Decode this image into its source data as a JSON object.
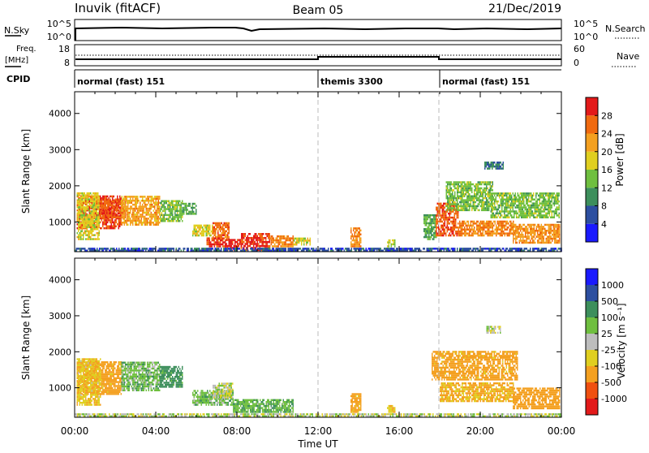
{
  "header": {
    "station": "Inuvik (fitACF)",
    "beam": "Beam 05",
    "date": "21/Dec/2019"
  },
  "top_panels": {
    "nsky_label": "N.Sky",
    "nsky_ticks": [
      "10^5",
      "10^0"
    ],
    "nsearch_label": "N.Search",
    "nsearch_ticks": [
      "10^5",
      "10^0"
    ],
    "freq_label": "Freq.",
    "freq_unit": "[MHz]",
    "freq_ticks": [
      "18",
      "8"
    ],
    "nave_label": "Nave",
    "nave_ticks": [
      "60",
      "0"
    ],
    "cpid_label": "CPID",
    "cpid_segments": [
      {
        "label": "normal (fast) 151",
        "start_hour": 0,
        "end_hour": 12
      },
      {
        "label": "themis 3300",
        "start_hour": 12,
        "end_hour": 18
      },
      {
        "label": "normal (fast) 151",
        "start_hour": 18,
        "end_hour": 24
      }
    ]
  },
  "colors": {
    "power": [
      "#1a1aff",
      "#2d4fa0",
      "#3d8f5c",
      "#6fbf3f",
      "#e0cf20",
      "#f4a020",
      "#f06a10",
      "#e31a1a"
    ],
    "velocity": [
      "#e31a1a",
      "#f05010",
      "#f4a020",
      "#e0cf20",
      "#bdbdbd",
      "#6fbf3f",
      "#3d8f5c",
      "#2d4fa0",
      "#1a1aff"
    ]
  },
  "chart_data": [
    {
      "type": "heatmap",
      "title": "",
      "xlabel": "Time UT",
      "ylabel": "Slant Range [km]",
      "xlim": [
        0,
        24
      ],
      "ylim": [
        180,
        4600
      ],
      "x_ticks": [
        "00:00",
        "04:00",
        "08:00",
        "12:00",
        "16:00",
        "20:00",
        "00:00"
      ],
      "y_ticks": [
        1000,
        2000,
        3000,
        4000
      ],
      "colorbar_label": "Power [dB]",
      "colorbar_ticks": [
        "4",
        "8",
        "12",
        "16",
        "20",
        "24",
        "28"
      ],
      "colorbar_range": [
        0,
        32
      ],
      "regions": [
        {
          "t0": 0.1,
          "t1": 2.3,
          "r0": 800,
          "r1": 1700,
          "level": 28
        },
        {
          "t0": 0.1,
          "t1": 1.2,
          "r0": 500,
          "r1": 1800,
          "level": 18
        },
        {
          "t0": 1.2,
          "t1": 2.5,
          "r0": 1100,
          "r1": 1600,
          "level": 27
        },
        {
          "t0": 2.3,
          "t1": 4.2,
          "r0": 900,
          "r1": 1700,
          "level": 22
        },
        {
          "t0": 4.2,
          "t1": 5.3,
          "r0": 1000,
          "r1": 1600,
          "level": 14
        },
        {
          "t0": 5.3,
          "t1": 6.0,
          "r0": 1200,
          "r1": 1500,
          "level": 12
        },
        {
          "t0": 5.8,
          "t1": 6.8,
          "r0": 600,
          "r1": 900,
          "level": 18
        },
        {
          "t0": 6.8,
          "t1": 7.6,
          "r0": 500,
          "r1": 950,
          "level": 26
        },
        {
          "t0": 6.5,
          "t1": 7.4,
          "r0": 300,
          "r1": 550,
          "level": 29
        },
        {
          "t0": 7.4,
          "t1": 8.2,
          "r0": 200,
          "r1": 500,
          "level": 30
        },
        {
          "t0": 8.2,
          "t1": 9.6,
          "r0": 200,
          "r1": 650,
          "level": 29
        },
        {
          "t0": 9.6,
          "t1": 10.8,
          "r0": 300,
          "r1": 600,
          "level": 24
        },
        {
          "t0": 10.8,
          "t1": 11.6,
          "r0": 350,
          "r1": 550,
          "level": 18
        },
        {
          "t0": 13.6,
          "t1": 14.1,
          "r0": 300,
          "r1": 800,
          "level": 24
        },
        {
          "t0": 15.4,
          "t1": 15.8,
          "r0": 300,
          "r1": 500,
          "level": 16
        },
        {
          "t0": 17.2,
          "t1": 17.8,
          "r0": 500,
          "r1": 1200,
          "level": 12
        },
        {
          "t0": 17.8,
          "t1": 18.9,
          "r0": 600,
          "r1": 1500,
          "level": 27
        },
        {
          "t0": 18.3,
          "t1": 20.6,
          "r0": 1300,
          "r1": 2100,
          "level": 14
        },
        {
          "t0": 18.9,
          "t1": 21.6,
          "r0": 600,
          "r1": 1000,
          "level": 24
        },
        {
          "t0": 21.6,
          "t1": 23.9,
          "r0": 400,
          "r1": 900,
          "level": 23
        },
        {
          "t0": 20.5,
          "t1": 23.9,
          "r0": 1100,
          "r1": 1800,
          "level": 14
        },
        {
          "t0": 20.2,
          "t1": 21.1,
          "r0": 2450,
          "r1": 2650,
          "level": 8
        },
        {
          "t0": 0.0,
          "t1": 24.0,
          "r0": 180,
          "r1": 270,
          "level": 6
        }
      ]
    },
    {
      "type": "heatmap",
      "title": "",
      "xlabel": "Time UT",
      "ylabel": "Slant Range [km]",
      "xlim": [
        0,
        24
      ],
      "ylim": [
        180,
        4600
      ],
      "x_ticks": [
        "00:00",
        "04:00",
        "08:00",
        "12:00",
        "16:00",
        "20:00",
        "00:00"
      ],
      "y_ticks": [
        1000,
        2000,
        3000,
        4000
      ],
      "colorbar_label": "Velocity [m s⁻¹]",
      "colorbar_ticks": [
        "1000",
        "500",
        "100",
        "25",
        "-25",
        "-100",
        "-500",
        "-1000"
      ],
      "regions": [
        {
          "t0": 0.1,
          "t1": 2.3,
          "r0": 800,
          "r1": 1700,
          "level": -150
        },
        {
          "t0": 0.1,
          "t1": 1.3,
          "r0": 500,
          "r1": 1800,
          "level": -80
        },
        {
          "t0": 2.3,
          "t1": 4.2,
          "r0": 900,
          "r1": 1700,
          "level": 60
        },
        {
          "t0": 4.2,
          "t1": 5.3,
          "r0": 1000,
          "r1": 1600,
          "level": 150
        },
        {
          "t0": 5.8,
          "t1": 7.8,
          "r0": 500,
          "r1": 900,
          "level": 60
        },
        {
          "t0": 6.8,
          "t1": 7.8,
          "r0": 700,
          "r1": 1100,
          "level": 0
        },
        {
          "t0": 7.8,
          "t1": 10.8,
          "r0": 300,
          "r1": 650,
          "level": 80
        },
        {
          "t0": 13.6,
          "t1": 14.1,
          "r0": 300,
          "r1": 800,
          "level": -150
        },
        {
          "t0": 15.4,
          "t1": 15.8,
          "r0": 300,
          "r1": 500,
          "level": -80
        },
        {
          "t0": 17.6,
          "t1": 21.8,
          "r0": 1200,
          "r1": 2000,
          "level": -150
        },
        {
          "t0": 18.0,
          "t1": 21.6,
          "r0": 600,
          "r1": 1100,
          "level": -120
        },
        {
          "t0": 21.6,
          "t1": 23.9,
          "r0": 400,
          "r1": 1000,
          "level": -200
        },
        {
          "t0": 20.3,
          "t1": 21.0,
          "r0": 2500,
          "r1": 2700,
          "level": 0
        },
        {
          "t0": 0.0,
          "t1": 24.0,
          "r0": 180,
          "r1": 280,
          "level": 0
        }
      ]
    }
  ]
}
